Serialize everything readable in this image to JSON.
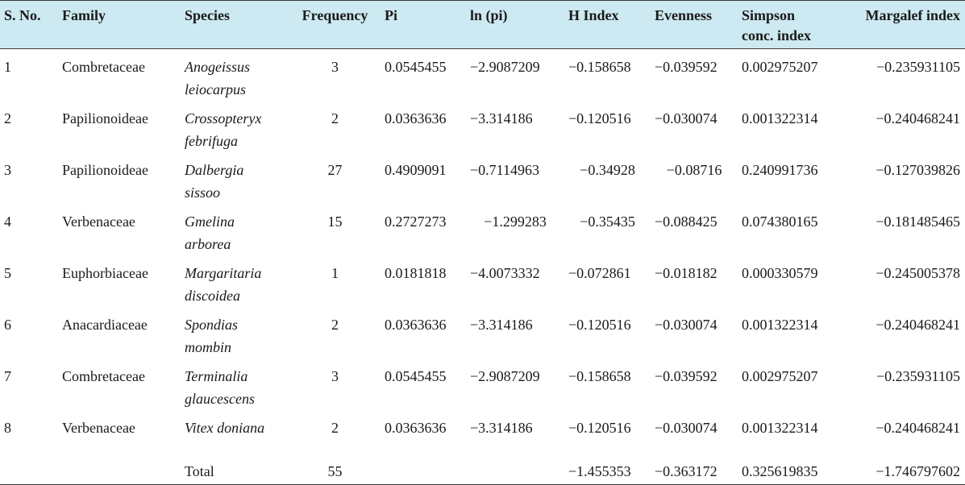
{
  "table": {
    "headers": {
      "sno": "S. No.",
      "family": "Family",
      "species": "Species",
      "frequency": "Frequency",
      "pi": "Pi",
      "lnpi": "ln (pi)",
      "hindex": "H Index",
      "evenness": "Evenness",
      "simpson_line1": "Simpson",
      "simpson_line2": "conc. index",
      "margalef": "Margalef index"
    },
    "rows": [
      {
        "sno": "1",
        "family": "Combretaceae",
        "species_line1": "Anogeissus",
        "species_line2": "leiocarpus",
        "frequency": "3",
        "pi": "0.0545455",
        "lnpi": "−2.9087209",
        "hindex": "−0.158658",
        "evenness": "−0.039592",
        "simpson": "0.002975207",
        "margalef": "−0.235931105"
      },
      {
        "sno": "2",
        "family": "Papilionoideae",
        "species_line1": "Crossopteryx",
        "species_line2": "febrifuga",
        "frequency": "2",
        "pi": "0.0363636",
        "lnpi": "−3.314186",
        "hindex": "−0.120516",
        "evenness": "−0.030074",
        "simpson": "0.001322314",
        "margalef": "−0.240468241"
      },
      {
        "sno": "3",
        "family": "Papilionoideae",
        "species_line1": "Dalbergia",
        "species_line2": "sissoo",
        "frequency": "27",
        "pi": "0.4909091",
        "lnpi": "−0.7114963",
        "hindex": "−0.34928",
        "evenness": "−0.08716",
        "simpson": "0.240991736",
        "margalef": "−0.127039826"
      },
      {
        "sno": "4",
        "family": "Verbenaceae",
        "species_line1": "Gmelina",
        "species_line2": "arborea",
        "frequency": "15",
        "pi": "0.2727273",
        "lnpi": "−1.299283",
        "hindex": "−0.35435",
        "evenness": "−0.088425",
        "simpson": "0.074380165",
        "margalef": "−0.181485465"
      },
      {
        "sno": "5",
        "family": "Euphorbiaceae",
        "species_line1": "Margaritaria",
        "species_line2": "discoidea",
        "frequency": "1",
        "pi": "0.0181818",
        "lnpi": "−4.0073332",
        "hindex": "−0.072861",
        "evenness": "−0.018182",
        "simpson": "0.000330579",
        "margalef": "−0.245005378"
      },
      {
        "sno": "6",
        "family": "Anacardiaceae",
        "species_line1": "Spondias",
        "species_line2": "mombin",
        "frequency": "2",
        "pi": "0.0363636",
        "lnpi": "−3.314186",
        "hindex": "−0.120516",
        "evenness": "−0.030074",
        "simpson": "0.001322314",
        "margalef": "−0.240468241"
      },
      {
        "sno": "7",
        "family": "Combretaceae",
        "species_line1": "Terminalia",
        "species_line2": "glaucescens",
        "frequency": "3",
        "pi": "0.0545455",
        "lnpi": "−2.9087209",
        "hindex": "−0.158658",
        "evenness": "−0.039592",
        "simpson": "0.002975207",
        "margalef": "−0.235931105"
      },
      {
        "sno": "8",
        "family": "Verbenaceae",
        "species_line1": "Vitex doniana",
        "species_line2": "",
        "frequency": "2",
        "pi": "0.0363636",
        "lnpi": "−3.314186",
        "hindex": "−0.120516",
        "evenness": "−0.030074",
        "simpson": "0.001322314",
        "margalef": "−0.240468241"
      }
    ],
    "total": {
      "label": "Total",
      "frequency": "55",
      "hindex": "−1.455353",
      "evenness": "−0.363172",
      "simpson": "0.325619835",
      "margalef": "−1.746797602"
    }
  }
}
